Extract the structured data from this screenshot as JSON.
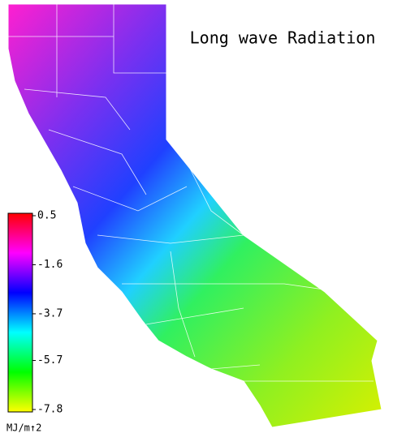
{
  "map": {
    "title": "Long wave Radiation",
    "colorbar": {
      "lim": [
        -7.8,
        0.5
      ],
      "ticks": [
        0.5,
        -1.6,
        -3.7,
        -5.7,
        -7.8
      ],
      "unit": "MJ/m↑2",
      "colors": [
        "#ffff00",
        "#00ff00",
        "#00ffff",
        "#0000ff",
        "#ff00ff",
        "#ff0000"
      ]
    }
  }
}
